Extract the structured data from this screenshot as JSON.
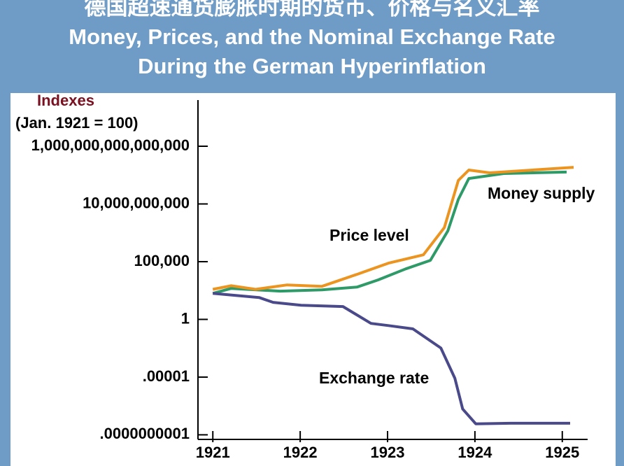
{
  "chart_data": {
    "type": "line",
    "title": "德国超速通货膨胀时期的货币、价格与名义汇率 Money, Prices, and the Nominal Exchange Rate During the German Hyperinflation",
    "y_label": "Indexes",
    "y_label_note": "(Jan. 1921 = 100)",
    "log_scale": true,
    "xlim": [
      1920.83,
      1925.29
    ],
    "xticks": [
      1921,
      1922,
      1923,
      1924,
      1925
    ],
    "ylim": [
      4e-11,
      1e+19
    ],
    "yticks": [
      {
        "value": 1000000000000000.0,
        "label": "1,000,000,000,000,000"
      },
      {
        "value": 10000000000.0,
        "label": "10,000,000,000"
      },
      {
        "value": 100000,
        "label": "100,000"
      },
      1,
      {
        "value": 1e-05,
        "label": ".00001"
      },
      {
        "value": 1e-10,
        "label": ".0000000001"
      }
    ],
    "series": [
      {
        "name": "Money supply",
        "color": "#2e9a68",
        "x": [
          1921.0,
          1921.21,
          1921.77,
          1922.25,
          1922.65,
          1922.89,
          1923.21,
          1923.49,
          1923.69,
          1923.81,
          1923.93,
          1924.33,
          1925.05
        ],
        "values": [
          180,
          480,
          280,
          360,
          630,
          2600,
          24000,
          130000,
          46000000,
          25000000000,
          1600000000000,
          4300000000000,
          5800000000000
        ]
      },
      {
        "name": "Price level",
        "color": "#eb9520",
        "x": [
          1921.0,
          1921.21,
          1921.49,
          1921.85,
          1922.25,
          1922.65,
          1923.01,
          1923.41,
          1923.65,
          1923.81,
          1923.93,
          1924.17,
          1925.13
        ],
        "values": [
          400,
          830,
          400,
          970,
          730,
          8000,
          74000,
          390000,
          91000000,
          1100000000000,
          8700000000000,
          5000000000000,
          15000000000000
        ]
      },
      {
        "name": "Exchange rate",
        "color": "#4a4a8a",
        "x": [
          1921.0,
          1921.53,
          1921.69,
          1922.01,
          1922.49,
          1922.81,
          1923.01,
          1923.29,
          1923.61,
          1923.77,
          1923.86,
          1924.01,
          1924.41,
          1925.09
        ],
        "values": [
          180,
          78,
          30,
          17,
          13,
          0.45,
          0.29,
          0.15,
          0.0033,
          8e-06,
          1.7e-08,
          9e-10,
          1e-09,
          1e-09
        ]
      }
    ]
  }
}
